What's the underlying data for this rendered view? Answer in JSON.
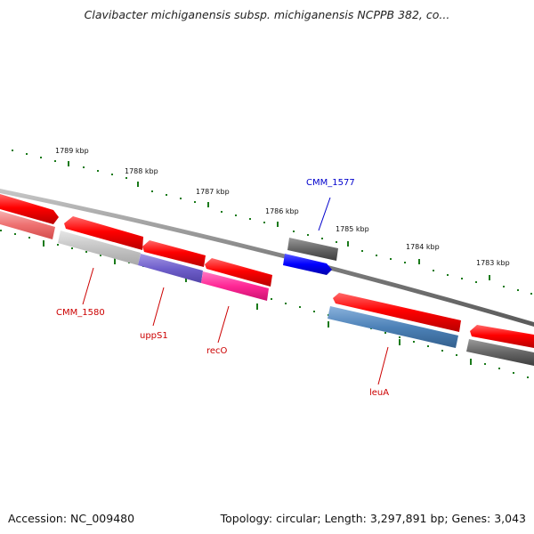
{
  "title": "Clavibacter michiganensis subsp. michiganensis NCPPB 382, co...",
  "footer": {
    "accession": "Accession: NC_009480",
    "summary": "Topology: circular; Length: 3,297,891 bp; Genes: 3,043"
  },
  "ruler": {
    "tick_labels": [
      "1789 kbp",
      "1788 kbp",
      "1787 kbp",
      "1786 kbp",
      "1785 kbp",
      "1784 kbp",
      "1783 kbp"
    ]
  },
  "gene_labels": [
    {
      "text": "CMM_1577",
      "color": "#0000cc"
    },
    {
      "text": "CMM_1580",
      "color": "#cc0000"
    },
    {
      "text": "uppS1",
      "color": "#cc0000"
    },
    {
      "text": "recO",
      "color": "#cc0000"
    },
    {
      "text": "leuA",
      "color": "#cc0000"
    }
  ],
  "colors": {
    "cds": "#ff0000",
    "backbone": "#8a8a8a",
    "tick": "#1a7a1a",
    "gene_cmm1577": "#0000ff",
    "gene_cmm1580": "#c8c8c8",
    "gene_upps1": "#7a6acc",
    "gene_reco": "#ff2e9a",
    "gene_leua": "#4a7fb5",
    "gene_dark": "#5a5a5a"
  }
}
